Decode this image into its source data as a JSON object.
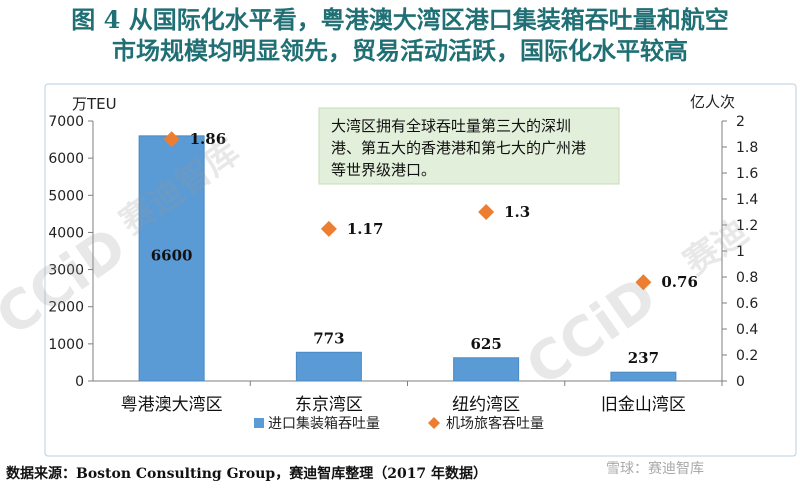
{
  "title": {
    "line1": "图 4   从国际化水平看，粤港澳大湾区港口集装箱吞吐量和航空",
    "line2": "市场规模均明显领先，贸易活动活跃，国际化水平较高"
  },
  "source": "数据来源：Boston Consulting Group，赛迪智库整理（2017 年数据）",
  "watermark": {
    "brand": "雪球：赛迪智库",
    "logo_text": "CCiD 赛迪智库"
  },
  "colors": {
    "title": "#1f6f74",
    "bar": "#5b9bd5",
    "bar_edge": "#4a89c4",
    "marker": "#ed7d31",
    "annotation_bg": "#e2efda",
    "panel_border": "#b8cfe0"
  },
  "chart_data": {
    "type": "bar",
    "categories": [
      "粤港澳大湾区",
      "东京湾区",
      "纽约湾区",
      "旧金山湾区"
    ],
    "series": [
      {
        "name": "进口集装箱吞吐量",
        "type": "bar",
        "axis": "left",
        "values": [
          6600,
          773,
          625,
          237
        ]
      },
      {
        "name": "机场旅客吞吐量",
        "type": "scatter",
        "axis": "right",
        "values": [
          1.86,
          1.17,
          1.3,
          0.76
        ]
      }
    ],
    "y_left": {
      "unit": "万TEU",
      "ylim": [
        0,
        7000
      ],
      "ticks": [
        0,
        1000,
        2000,
        3000,
        4000,
        5000,
        6000,
        7000
      ]
    },
    "y_right": {
      "unit": "亿人次",
      "ylim": [
        0,
        2
      ],
      "ticks": [
        "0",
        "0.2",
        "0.4",
        "0.6",
        "0.8",
        "1",
        "1.2",
        "1.4",
        "1.6",
        "1.8",
        "2"
      ]
    },
    "bar_labels": [
      "6600",
      "773",
      "625",
      "237"
    ],
    "marker_labels": [
      "1.86",
      "1.17",
      "1.3",
      "0.76"
    ],
    "annotation": {
      "lines": [
        "大湾区拥有全球吞吐量第三大的深圳",
        "港、第五大的香港港和第七大的广州港",
        "等世界级港口。"
      ]
    },
    "legend": {
      "position": "bottom"
    },
    "grid": false
  }
}
